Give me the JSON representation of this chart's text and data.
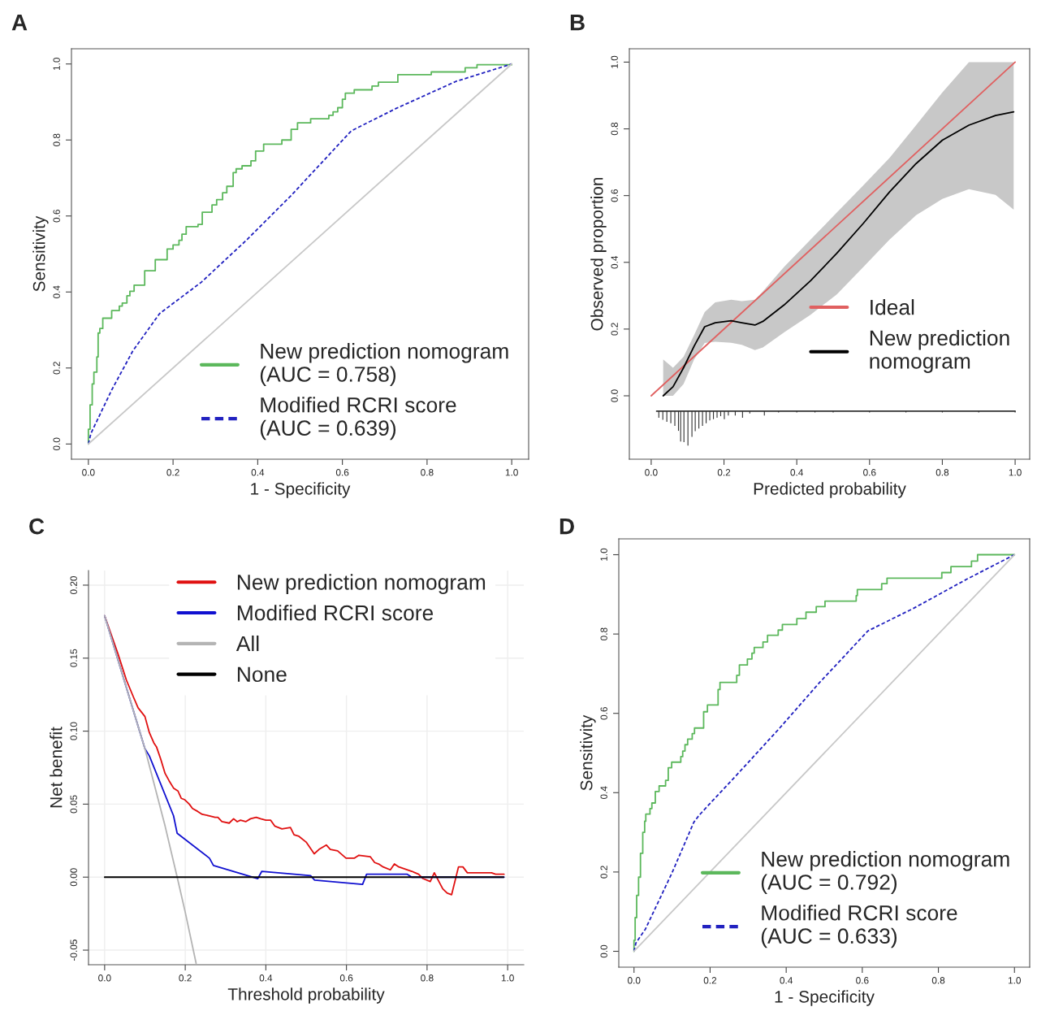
{
  "chart_data": [
    {
      "type": "line",
      "title": "A",
      "xlabel": "1 - Specificity",
      "ylabel": "Sensitivity",
      "xlim": [
        -0.04,
        1.04
      ],
      "ylim": [
        -0.04,
        1.04
      ],
      "xticks": [
        {
          "value": 0,
          "label": "0.0"
        },
        {
          "value": 0.2,
          "label": "0.2"
        },
        {
          "value": 0.4,
          "label": "0.4"
        },
        {
          "value": 0.6,
          "label": "0.6"
        },
        {
          "value": 0.8,
          "label": "0.8"
        },
        {
          "value": 1,
          "label": "1.0"
        }
      ],
      "yticks": [
        {
          "value": 0,
          "label": "0.0"
        },
        {
          "value": 0.2,
          "label": "0.2"
        },
        {
          "value": 0.4,
          "label": "0.4"
        },
        {
          "value": 0.6,
          "label": "0.6"
        },
        {
          "value": 0.8,
          "label": "0.8"
        },
        {
          "value": 1,
          "label": "1.0"
        }
      ],
      "legend": "lower right",
      "grid": false,
      "series": [
        {
          "type": "step",
          "name": "New prediction nomogram\n(AUC = 0.758)",
          "color": "#5cb85c",
          "x": [
            0,
            0,
            0.004,
            0.009,
            0.013,
            0.02,
            0.023,
            0.027,
            0.034,
            0.055,
            0.073,
            0.08,
            0.091,
            0.098,
            0.108,
            0.133,
            0.158,
            0.186,
            0.2,
            0.214,
            0.221,
            0.231,
            0.259,
            0.269,
            0.292,
            0.303,
            0.317,
            0.327,
            0.342,
            0.349,
            0.363,
            0.384,
            0.395,
            0.414,
            0.457,
            0.479,
            0.494,
            0.525,
            0.568,
            0.578,
            0.589,
            0.6,
            0.607,
            0.628,
            0.67,
            0.685,
            0.731,
            0.81,
            0.89,
            0.918,
            1.0
          ],
          "values": [
            0,
            0.039,
            0.103,
            0.158,
            0.189,
            0.229,
            0.292,
            0.304,
            0.331,
            0.351,
            0.363,
            0.371,
            0.39,
            0.402,
            0.418,
            0.456,
            0.485,
            0.513,
            0.524,
            0.536,
            0.552,
            0.572,
            0.578,
            0.61,
            0.629,
            0.643,
            0.661,
            0.678,
            0.714,
            0.724,
            0.732,
            0.745,
            0.771,
            0.789,
            0.8,
            0.828,
            0.845,
            0.856,
            0.865,
            0.874,
            0.885,
            0.907,
            0.923,
            0.932,
            0.942,
            0.952,
            0.972,
            0.979,
            0.99,
            0.998,
            1.0
          ]
        },
        {
          "name": "Modified RCRI score\n(AUC = 0.639)",
          "color": "#2222c0",
          "line_style": "dashed",
          "x": [
            0,
            0.006,
            0.055,
            0.105,
            0.168,
            0.267,
            0.373,
            0.479,
            0.621,
            0.727,
            0.868,
            1.0
          ],
          "values": [
            0,
            0.028,
            0.142,
            0.245,
            0.343,
            0.426,
            0.536,
            0.654,
            0.824,
            0.883,
            0.954,
            1.0
          ]
        },
        {
          "color": "#c8c8c8",
          "x": [
            0,
            1
          ],
          "values": [
            0,
            1
          ]
        }
      ]
    },
    {
      "type": "line",
      "title": "B",
      "xlabel": "Predicted probability",
      "ylabel": "Observed proportion",
      "xlim": [
        -0.06,
        1.04
      ],
      "ylim": [
        -0.19,
        1.04
      ],
      "xticks": [
        {
          "value": 0,
          "label": "0.0"
        },
        {
          "value": 0.2,
          "label": "0.2"
        },
        {
          "value": 0.4,
          "label": "0.4"
        },
        {
          "value": 0.6,
          "label": "0.6"
        },
        {
          "value": 0.8,
          "label": "0.8"
        },
        {
          "value": 1,
          "label": "1.0"
        }
      ],
      "yticks": [
        {
          "value": 0,
          "label": "0.0"
        },
        {
          "value": 0.2,
          "label": "0.2"
        },
        {
          "value": 0.4,
          "label": "0.4"
        },
        {
          "value": 0.6,
          "label": "0.6"
        },
        {
          "value": 0.8,
          "label": "0.8"
        },
        {
          "value": 1,
          "label": "1.0"
        }
      ],
      "legend": "right",
      "grid": false,
      "series": [
        {
          "name": "Ideal",
          "color": "#e06060",
          "x": [
            0,
            1
          ],
          "values": [
            0,
            1
          ]
        },
        {
          "name": "New prediction\nnomogram",
          "color": "#000000",
          "x": [
            0.033,
            0.06,
            0.089,
            0.118,
            0.147,
            0.176,
            0.22,
            0.249,
            0.285,
            0.307,
            0.365,
            0.438,
            0.51,
            0.583,
            0.655,
            0.728,
            0.8,
            0.873,
            0.946,
            0.996
          ],
          "values": [
            0,
            0.027,
            0.084,
            0.149,
            0.207,
            0.219,
            0.225,
            0.219,
            0.212,
            0.223,
            0.272,
            0.345,
            0.427,
            0.517,
            0.611,
            0.696,
            0.766,
            0.811,
            0.84,
            0.851
          ],
          "lower": [
            0,
            0,
            0.035,
            0.109,
            0.158,
            0.162,
            0.159,
            0.153,
            0.137,
            0.145,
            0.19,
            0.243,
            0.304,
            0.386,
            0.468,
            0.541,
            0.59,
            0.619,
            0.602,
            0.558
          ],
          "upper": [
            0.109,
            0.084,
            0.117,
            0.182,
            0.251,
            0.28,
            0.288,
            0.284,
            0.288,
            0.313,
            0.386,
            0.468,
            0.549,
            0.631,
            0.713,
            0.811,
            0.909,
            1.0,
            1.0,
            1.0
          ]
        },
        {
          "color": "#333333",
          "x": [
            0.015,
            1.0
          ],
          "values": [
            -0.046,
            -0.046
          ]
        },
        {
          "type": "bar",
          "color": "#333333",
          "x": [
            0.021,
            0.032,
            0.043,
            0.054,
            0.065,
            0.075,
            0.081,
            0.09,
            0.101,
            0.112,
            0.121,
            0.131,
            0.141,
            0.151,
            0.161,
            0.171,
            0.181,
            0.191,
            0.201,
            0.212,
            0.231,
            0.251,
            0.271,
            0.311,
            0.35,
            0.4,
            0.45,
            0.5,
            0.6,
            0.7,
            0.8,
            0.9,
            1.0
          ],
          "base": [
            -0.046,
            -0.046,
            -0.046,
            -0.046,
            -0.046,
            -0.046,
            -0.046,
            -0.046,
            -0.046,
            -0.046,
            -0.046,
            -0.046,
            -0.046,
            -0.046,
            -0.046,
            -0.046,
            -0.046,
            -0.046,
            -0.046,
            -0.046,
            -0.046,
            -0.046,
            -0.046,
            -0.046,
            -0.046,
            -0.046,
            -0.046,
            -0.046,
            -0.046,
            -0.046,
            -0.046,
            -0.046,
            -0.046
          ],
          "values": [
            -0.02,
            -0.026,
            -0.032,
            -0.036,
            -0.044,
            -0.059,
            -0.091,
            -0.093,
            -0.103,
            -0.077,
            -0.06,
            -0.052,
            -0.044,
            -0.036,
            -0.028,
            -0.024,
            -0.02,
            -0.015,
            -0.024,
            -0.013,
            -0.013,
            -0.02,
            -0.007,
            -0.013,
            -0.004,
            -0.004,
            -0.004,
            -0.004,
            -0.004,
            -0.004,
            -0.004,
            -0.004,
            -0.004
          ]
        }
      ]
    },
    {
      "type": "line",
      "title": "C",
      "xlabel": "Threshold probability",
      "ylabel": "Net benefit",
      "xlim": [
        -0.04,
        1.04
      ],
      "ylim": [
        -0.06,
        0.21
      ],
      "xticks": [
        {
          "value": 0,
          "label": "0.0"
        },
        {
          "value": 0.2,
          "label": "0.2"
        },
        {
          "value": 0.4,
          "label": "0.4"
        },
        {
          "value": 0.6,
          "label": "0.6"
        },
        {
          "value": 0.8,
          "label": "0.8"
        },
        {
          "value": 1,
          "label": "1.0"
        }
      ],
      "yticks": [
        {
          "value": -0.05,
          "label": "-0.05"
        },
        {
          "value": 0,
          "label": "0.00"
        },
        {
          "value": 0.05,
          "label": "0.05"
        },
        {
          "value": 0.1,
          "label": "0.10"
        },
        {
          "value": 0.15,
          "label": "0.15"
        },
        {
          "value": 0.2,
          "label": "0.20"
        }
      ],
      "legend": "top",
      "grid": true,
      "series": [
        {
          "name": "New prediction nomogram",
          "color": "#e01010",
          "x": [
            0,
            0.033,
            0.054,
            0.072,
            0.083,
            0.1,
            0.111,
            0.122,
            0.129,
            0.139,
            0.15,
            0.16,
            0.171,
            0.182,
            0.19,
            0.199,
            0.21,
            0.218,
            0.231,
            0.242,
            0.26,
            0.274,
            0.281,
            0.291,
            0.309,
            0.32,
            0.329,
            0.337,
            0.35,
            0.362,
            0.376,
            0.387,
            0.4,
            0.412,
            0.422,
            0.44,
            0.461,
            0.47,
            0.482,
            0.5,
            0.52,
            0.532,
            0.55,
            0.56,
            0.578,
            0.599,
            0.613,
            0.62,
            0.631,
            0.659,
            0.67,
            0.68,
            0.691,
            0.709,
            0.719,
            0.73,
            0.762,
            0.779,
            0.79,
            0.808,
            0.818,
            0.839,
            0.85,
            0.861,
            0.878,
            0.889,
            0.9,
            0.96,
            0.97,
            0.991
          ],
          "values": [
            0.179,
            0.153,
            0.135,
            0.123,
            0.116,
            0.11,
            0.099,
            0.092,
            0.089,
            0.081,
            0.071,
            0.066,
            0.061,
            0.059,
            0.054,
            0.053,
            0.05,
            0.047,
            0.045,
            0.043,
            0.042,
            0.041,
            0.041,
            0.038,
            0.037,
            0.04,
            0.038,
            0.039,
            0.038,
            0.04,
            0.041,
            0.04,
            0.039,
            0.039,
            0.035,
            0.033,
            0.034,
            0.029,
            0.028,
            0.024,
            0.016,
            0.019,
            0.022,
            0.019,
            0.018,
            0.013,
            0.013,
            0.013,
            0.015,
            0.014,
            0.01,
            0.009,
            0.007,
            0.005,
            0.009,
            0.007,
            0.004,
            0.002,
            -0.001,
            -0.003,
            0.003,
            -0.008,
            -0.011,
            -0.012,
            0.007,
            0.007,
            0.003,
            0.003,
            0.002,
            0.002
          ]
        },
        {
          "name": "Modified RCRI score",
          "color": "#1010d0",
          "x": [
            0,
            0.1,
            0.111,
            0.171,
            0.18,
            0.26,
            0.27,
            0.38,
            0.39,
            0.511,
            0.521,
            0.64,
            0.65,
            0.751,
            0.762,
            0.991
          ],
          "values": [
            0.179,
            0.088,
            0.083,
            0.042,
            0.03,
            0.013,
            0.008,
            -0.001,
            0.004,
            0.001,
            -0.002,
            -0.005,
            0.002,
            0.002,
            0,
            0
          ]
        },
        {
          "name": "All",
          "color": "#b4b4b4",
          "x": [
            0,
            0.1,
            0.15,
            0.18,
            0.2,
            0.227
          ],
          "values": [
            0.179,
            0.088,
            0.035,
            0,
            -0.024,
            -0.059
          ]
        },
        {
          "name": "None",
          "color": "#000000",
          "x": [
            0,
            0.99
          ],
          "values": [
            0,
            0
          ]
        }
      ]
    },
    {
      "type": "line",
      "title": "D",
      "xlabel": "1 - Specificity",
      "ylabel": "Sensitivity",
      "xlim": [
        -0.04,
        1.04
      ],
      "ylim": [
        -0.04,
        1.04
      ],
      "xticks": [
        {
          "value": 0,
          "label": "0.0"
        },
        {
          "value": 0.2,
          "label": "0.2"
        },
        {
          "value": 0.4,
          "label": "0.4"
        },
        {
          "value": 0.6,
          "label": "0.6"
        },
        {
          "value": 0.8,
          "label": "0.8"
        },
        {
          "value": 1,
          "label": "1.0"
        }
      ],
      "yticks": [
        {
          "value": 0,
          "label": "0.0"
        },
        {
          "value": 0.2,
          "label": "0.2"
        },
        {
          "value": 0.4,
          "label": "0.4"
        },
        {
          "value": 0.6,
          "label": "0.6"
        },
        {
          "value": 0.8,
          "label": "0.8"
        },
        {
          "value": 1,
          "label": "1.0"
        }
      ],
      "legend": "lower right",
      "grid": false,
      "series": [
        {
          "type": "step",
          "name": "New prediction nomogram\n(AUC = 0.792)",
          "color": "#5cb85c",
          "x": [
            0,
            0,
            0.003,
            0.007,
            0.012,
            0.017,
            0.023,
            0.028,
            0.031,
            0.042,
            0.047,
            0.056,
            0.066,
            0.083,
            0.09,
            0.099,
            0.123,
            0.128,
            0.134,
            0.141,
            0.153,
            0.159,
            0.183,
            0.193,
            0.221,
            0.226,
            0.27,
            0.277,
            0.298,
            0.31,
            0.316,
            0.339,
            0.351,
            0.379,
            0.39,
            0.428,
            0.452,
            0.479,
            0.502,
            0.584,
            0.587,
            0.651,
            0.665,
            0.809,
            0.833,
            0.887,
            0.903,
            1.0
          ],
          "values": [
            0,
            0.028,
            0.085,
            0.141,
            0.187,
            0.247,
            0.3,
            0.328,
            0.346,
            0.36,
            0.374,
            0.403,
            0.417,
            0.431,
            0.463,
            0.477,
            0.491,
            0.505,
            0.521,
            0.535,
            0.549,
            0.563,
            0.604,
            0.621,
            0.66,
            0.678,
            0.696,
            0.722,
            0.737,
            0.752,
            0.766,
            0.78,
            0.797,
            0.81,
            0.824,
            0.839,
            0.855,
            0.869,
            0.883,
            0.897,
            0.912,
            0.927,
            0.941,
            0.955,
            0.97,
            0.984,
            1.0,
            1.0
          ]
        },
        {
          "name": "Modified RCRI score\n(AUC = 0.633)",
          "color": "#2222c0",
          "line_style": "dashed",
          "x": [
            0,
            0.005,
            0.03,
            0.1,
            0.157,
            0.171,
            0.277,
            0.382,
            0.488,
            0.615,
            0.735,
            0.876,
            1.0
          ],
          "values": [
            0,
            0.021,
            0.056,
            0.198,
            0.325,
            0.343,
            0.452,
            0.562,
            0.678,
            0.808,
            0.865,
            0.939,
            1.0
          ]
        },
        {
          "color": "#c8c8c8",
          "x": [
            0,
            1
          ],
          "values": [
            0,
            1
          ]
        }
      ]
    }
  ]
}
